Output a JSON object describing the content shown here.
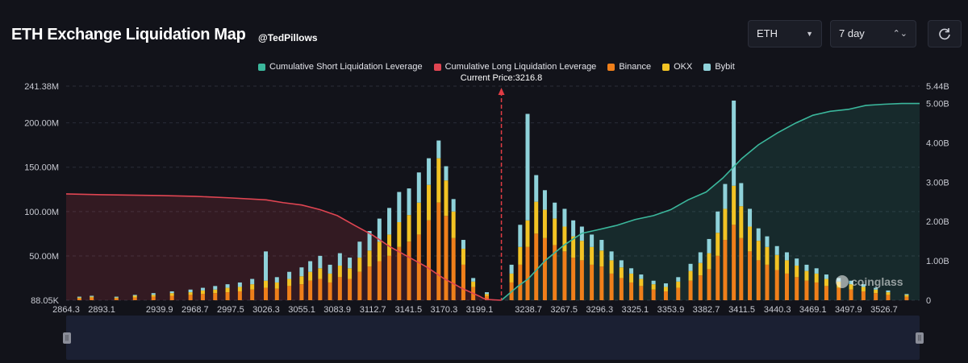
{
  "header": {
    "title": "ETH Exchange Liquidation Map",
    "handle": "@TedPillows",
    "asset_select": "ETH",
    "period_select": "7 day"
  },
  "watermark": "coinglass",
  "colors": {
    "background": "#12131a",
    "short_cum": "#3bb79c",
    "long_cum": "#e04552",
    "binance": "#ef7f1a",
    "okx": "#f2c324",
    "bybit": "#8fd2da",
    "current_price": "#e03c44"
  },
  "chart_data": {
    "type": "bar",
    "title": "ETH Exchange Liquidation Map",
    "current_price": 3216.8,
    "current_price_label": "Current Price:3216.8",
    "legend": [
      {
        "name": "Cumulative Short Liquidation Leverage",
        "color": "#3bb79c"
      },
      {
        "name": "Cumulative Long Liquidation Leverage",
        "color": "#e04552"
      },
      {
        "name": "Binance",
        "color": "#ef7f1a"
      },
      {
        "name": "OKX",
        "color": "#f2c324"
      },
      {
        "name": "Bybit",
        "color": "#8fd2da"
      }
    ],
    "x_ticks": [
      "2864.3",
      "2893.1",
      "2939.9",
      "2968.7",
      "2997.5",
      "3026.3",
      "3055.1",
      "3083.9",
      "3112.7",
      "3141.5",
      "3170.3",
      "3199.1",
      "3238.7",
      "3267.5",
      "3296.3",
      "3325.1",
      "3353.9",
      "3382.7",
      "3411.5",
      "3440.3",
      "3469.1",
      "3497.9",
      "3526.7"
    ],
    "x_range": [
      2864.3,
      3555.5
    ],
    "y_left": {
      "ylim": [
        88050,
        241380000
      ],
      "ticks": [
        {
          "value": 241380000,
          "label": "241.38M"
        },
        {
          "value": 200000000,
          "label": "200.00M"
        },
        {
          "value": 150000000,
          "label": "150.00M"
        },
        {
          "value": 100000000,
          "label": "100.00M"
        },
        {
          "value": 50000000,
          "label": "50.00M"
        },
        {
          "value": 88050,
          "label": "88.05K"
        }
      ]
    },
    "y_right": {
      "ylim": [
        0,
        5440000000
      ],
      "ticks": [
        {
          "value": 5440000000,
          "label": "5.44B"
        },
        {
          "value": 5000000000,
          "label": "5.00B"
        },
        {
          "value": 4000000000,
          "label": "4.00B"
        },
        {
          "value": 3000000000,
          "label": "3.00B"
        },
        {
          "value": 2000000000,
          "label": "2.00B"
        },
        {
          "value": 1000000000,
          "label": "1.00B"
        },
        {
          "value": 0,
          "label": "0"
        }
      ]
    },
    "series": [
      {
        "name": "Cumulative Long Liquidation Leverage",
        "axis": "right",
        "x": [
          2864.3,
          2893.1,
          2939.9,
          2968.7,
          2997.5,
          3026.3,
          3040.0,
          3055.1,
          3070.0,
          3083.9,
          3098.0,
          3112.7,
          3127.0,
          3141.5,
          3156.0,
          3170.3,
          3185.0,
          3199.1,
          3202.0,
          3205.0,
          3216.8
        ],
        "values": [
          2700000000.0,
          2680000000.0,
          2660000000.0,
          2640000000.0,
          2600000000.0,
          2550000000.0,
          2480000000.0,
          2420000000.0,
          2300000000.0,
          2150000000.0,
          1900000000.0,
          1650000000.0,
          1350000000.0,
          1100000000.0,
          850000000.0,
          550000000.0,
          300000000.0,
          100000000.0,
          50000000.0,
          20000000.0,
          0.0
        ]
      },
      {
        "name": "Cumulative Short Liquidation Leverage",
        "axis": "right",
        "x": [
          3216.8,
          3230.0,
          3238.7,
          3252.0,
          3267.5,
          3282.0,
          3296.3,
          3310.0,
          3325.1,
          3340.0,
          3353.9,
          3368.0,
          3382.7,
          3396.0,
          3411.5,
          3425.0,
          3440.3,
          3455.0,
          3469.1,
          3483.0,
          3497.9,
          3512.0,
          3526.7,
          3541.0,
          3555.5
        ],
        "values": [
          0.0,
          350000000.0,
          550000000.0,
          1000000000.0,
          1400000000.0,
          1700000000.0,
          1800000000.0,
          1900000000.0,
          2050000000.0,
          2150000000.0,
          2300000000.0,
          2550000000.0,
          2750000000.0,
          3100000000.0,
          3600000000.0,
          3950000000.0,
          4250000000.0,
          4500000000.0,
          4700000000.0,
          4800000000.0,
          4850000000.0,
          4950000000.0,
          4980000000.0,
          5000000000.0,
          5000000000.0
        ]
      },
      {
        "name": "Binance",
        "axis": "left",
        "x": [
          2875,
          2885,
          2905,
          2920,
          2935,
          2950,
          2965,
          2975,
          2985,
          2995,
          3005,
          3015,
          3026,
          3035,
          3045,
          3055,
          3062,
          3070,
          3078,
          3086,
          3094,
          3102,
          3110,
          3118,
          3126,
          3134,
          3142,
          3150,
          3158,
          3166,
          3172,
          3178,
          3186,
          3194,
          3205,
          3225,
          3232,
          3238,
          3245,
          3252,
          3260,
          3268,
          3275,
          3282,
          3290,
          3298,
          3306,
          3314,
          3322,
          3330,
          3340,
          3350,
          3360,
          3370,
          3378,
          3385,
          3392,
          3398,
          3405,
          3411,
          3418,
          3425,
          3432,
          3440,
          3448,
          3456,
          3464,
          3472,
          3480,
          3490,
          3500,
          3510,
          3520,
          3530,
          3545
        ],
        "values": [
          2000000.0,
          3000000.0,
          2000000.0,
          3000000.0,
          4000000.0,
          5000000.0,
          6000000.0,
          7000000.0,
          8000000.0,
          9000000.0,
          10000000.0,
          12000000.0,
          14000000.0,
          13000000.0,
          16000000.0,
          18000000.0,
          22000000.0,
          24000000.0,
          20000000.0,
          26000000.0,
          24000000.0,
          32000000.0,
          38000000.0,
          44000000.0,
          50000000.0,
          60000000.0,
          66000000.0,
          74000000.0,
          90000000.0,
          110000000.0,
          95000000.0,
          70000000.0,
          40000000.0,
          15000000.0,
          5000000.0,
          20000000.0,
          40000000.0,
          60000000.0,
          75000000.0,
          70000000.0,
          62000000.0,
          55000000.0,
          48000000.0,
          45000000.0,
          40000000.0,
          38000000.0,
          30000000.0,
          25000000.0,
          20000000.0,
          16000000.0,
          12000000.0,
          10000000.0,
          14000000.0,
          22000000.0,
          28000000.0,
          35000000.0,
          50000000.0,
          68000000.0,
          85000000.0,
          70000000.0,
          55000000.0,
          45000000.0,
          40000000.0,
          34000000.0,
          30000000.0,
          26000000.0,
          22000000.0,
          20000000.0,
          16000000.0,
          14000000.0,
          12000000.0,
          10000000.0,
          8000000.0,
          6000000.0,
          4000000.0
        ]
      },
      {
        "name": "OKX",
        "axis": "left",
        "x": [
          2875,
          2885,
          2905,
          2920,
          2935,
          2950,
          2965,
          2975,
          2985,
          2995,
          3005,
          3015,
          3026,
          3035,
          3045,
          3055,
          3062,
          3070,
          3078,
          3086,
          3094,
          3102,
          3110,
          3118,
          3126,
          3134,
          3142,
          3150,
          3158,
          3166,
          3172,
          3178,
          3186,
          3194,
          3205,
          3225,
          3232,
          3238,
          3245,
          3252,
          3260,
          3268,
          3275,
          3282,
          3290,
          3298,
          3306,
          3314,
          3322,
          3330,
          3340,
          3350,
          3360,
          3370,
          3378,
          3385,
          3392,
          3398,
          3405,
          3411,
          3418,
          3425,
          3432,
          3440,
          3448,
          3456,
          3464,
          3472,
          3480,
          3490,
          3500,
          3510,
          3520,
          3530,
          3545
        ],
        "values": [
          1000000.0,
          1000000.0,
          1000000.0,
          2000000.0,
          2000000.0,
          3000000.0,
          3000000.0,
          4000000.0,
          4000000.0,
          5000000.0,
          5000000.0,
          6000000.0,
          8000000.0,
          7000000.0,
          8000000.0,
          9000000.0,
          10000000.0,
          12000000.0,
          10000000.0,
          13000000.0,
          12000000.0,
          16000000.0,
          18000000.0,
          22000000.0,
          24000000.0,
          28000000.0,
          30000000.0,
          36000000.0,
          40000000.0,
          50000000.0,
          40000000.0,
          30000000.0,
          18000000.0,
          6000000.0,
          2000000.0,
          10000000.0,
          20000000.0,
          30000000.0,
          36000000.0,
          32000000.0,
          30000000.0,
          28000000.0,
          24000000.0,
          22000000.0,
          20000000.0,
          18000000.0,
          15000000.0,
          12000000.0,
          10000000.0,
          8000000.0,
          6000000.0,
          5000000.0,
          7000000.0,
          11000000.0,
          14000000.0,
          18000000.0,
          26000000.0,
          35000000.0,
          44000000.0,
          36000000.0,
          28000000.0,
          22000000.0,
          20000000.0,
          17000000.0,
          15000000.0,
          13000000.0,
          11000000.0,
          10000000.0,
          8000000.0,
          7000000.0,
          6000000.0,
          5000000.0,
          4000000.0,
          3000000.0,
          2000000.0
        ]
      },
      {
        "name": "Bybit",
        "axis": "left",
        "x": [
          2875,
          2885,
          2905,
          2920,
          2935,
          2950,
          2965,
          2975,
          2985,
          2995,
          3005,
          3015,
          3026,
          3035,
          3045,
          3055,
          3062,
          3070,
          3078,
          3086,
          3094,
          3102,
          3110,
          3118,
          3126,
          3134,
          3142,
          3150,
          3158,
          3166,
          3172,
          3178,
          3186,
          3194,
          3205,
          3225,
          3232,
          3238,
          3245,
          3252,
          3260,
          3268,
          3275,
          3282,
          3290,
          3298,
          3306,
          3314,
          3322,
          3330,
          3340,
          3350,
          3360,
          3370,
          3378,
          3385,
          3392,
          3398,
          3405,
          3411,
          3418,
          3425,
          3432,
          3440,
          3448,
          3456,
          3464,
          3472,
          3480,
          3490,
          3500,
          3510,
          3520,
          3530,
          3545
        ],
        "values": [
          1000000.0,
          1000000.0,
          1000000.0,
          1000000.0,
          2000000.0,
          2000000.0,
          3000000.0,
          3000000.0,
          4000000.0,
          4000000.0,
          5000000.0,
          6000000.0,
          33000000.0,
          6000000.0,
          8000000.0,
          10000000.0,
          12000000.0,
          14000000.0,
          10000000.0,
          14000000.0,
          12000000.0,
          18000000.0,
          22000000.0,
          26000000.0,
          30000000.0,
          34000000.0,
          30000000.0,
          34000000.0,
          30000000.0,
          20000000.0,
          16000000.0,
          14000000.0,
          10000000.0,
          4000000.0,
          2000000.0,
          10000000.0,
          25000000.0,
          120000000.0,
          30000000.0,
          22000000.0,
          18000000.0,
          20000000.0,
          18000000.0,
          16000000.0,
          14000000.0,
          12000000.0,
          10000000.0,
          8000000.0,
          6000000.0,
          5000000.0,
          4000000.0,
          4000000.0,
          5000000.0,
          8000000.0,
          12000000.0,
          16000000.0,
          24000000.0,
          28000000.0,
          96000000.0,
          26000000.0,
          20000000.0,
          14000000.0,
          12000000.0,
          10000000.0,
          9000000.0,
          8000000.0,
          7000000.0,
          6000000.0,
          5000000.0,
          4000000.0,
          4000000.0,
          3000000.0,
          2000000.0,
          2000000.0,
          1000000.0
        ]
      }
    ]
  }
}
